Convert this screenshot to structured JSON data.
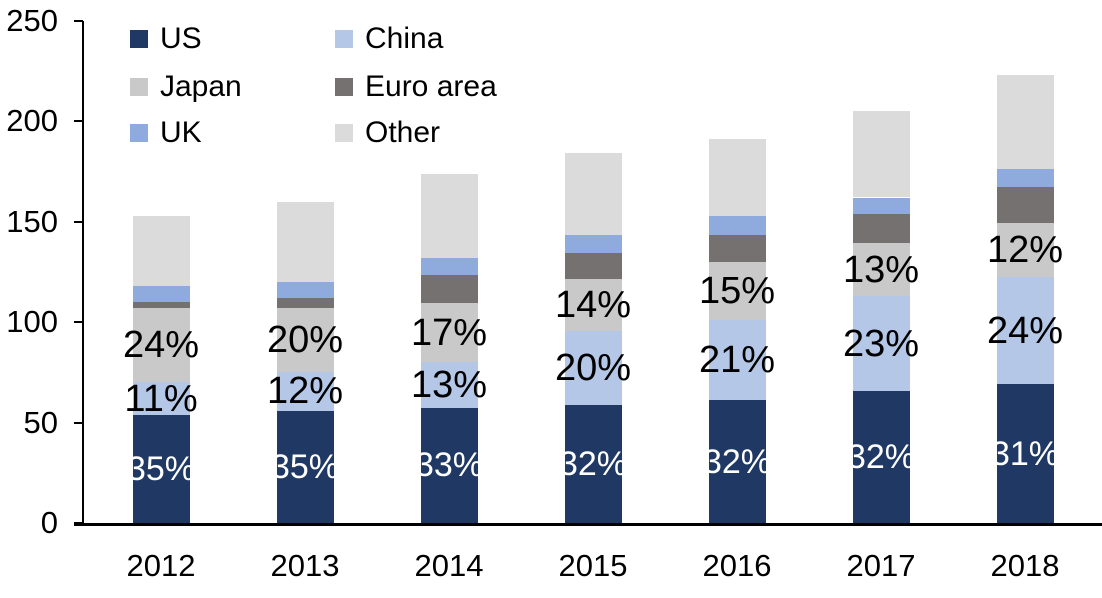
{
  "chart_data": {
    "type": "bar",
    "stacked": true,
    "title": "",
    "xlabel": "",
    "ylabel": "",
    "grid": false,
    "categories": [
      "2012",
      "2013",
      "2014",
      "2015",
      "2016",
      "2017",
      "2018"
    ],
    "totals": [
      153,
      160,
      174,
      184,
      191,
      205,
      223
    ],
    "y_axis": {
      "min": 0,
      "max": 250,
      "tick_step": 50,
      "ticks": [
        0,
        50,
        100,
        150,
        200,
        250
      ],
      "tick_labels": [
        "0",
        "50",
        "100",
        "150",
        "200",
        "250"
      ]
    },
    "series": [
      {
        "name": "US",
        "color": "#1F3864",
        "pct": [
          35,
          35,
          33,
          32,
          32,
          32,
          31
        ],
        "values": [
          53.6,
          56.0,
          57.4,
          58.9,
          61.1,
          65.6,
          69.1
        ],
        "labels": [
          "35%",
          "35%",
          "33%",
          "32%",
          "32%",
          "32%",
          "31%"
        ],
        "label_color": "#FFFFFF"
      },
      {
        "name": "China",
        "color": "#B4C7E7",
        "pct": [
          11,
          12,
          13,
          20,
          21,
          23,
          24
        ],
        "values": [
          16.8,
          19.2,
          22.6,
          36.8,
          40.1,
          47.2,
          53.5
        ],
        "labels": [
          "11%",
          "12%",
          "13%",
          "20%",
          "21%",
          "23%",
          "24%"
        ],
        "label_color": "#000000"
      },
      {
        "name": "Japan",
        "color": "#C9C9C9",
        "pct": [
          24,
          20,
          17,
          14,
          15,
          13,
          12
        ],
        "values": [
          36.7,
          32.0,
          29.6,
          25.8,
          28.7,
          26.7,
          26.8
        ],
        "labels": [
          "24%",
          "20%",
          "17%",
          "14%",
          "15%",
          "13%",
          "12%"
        ],
        "label_color": "#000000"
      },
      {
        "name": "Euro area",
        "color": "#767171",
        "pct": [
          2,
          3,
          8,
          7,
          7,
          7,
          8
        ],
        "values": [
          3.1,
          4.8,
          13.9,
          12.9,
          13.4,
          14.4,
          17.8
        ],
        "labels": null,
        "label_color": null
      },
      {
        "name": "UK",
        "color": "#8FAADC",
        "pct": [
          5,
          5,
          5,
          5,
          5,
          4,
          4
        ],
        "values": [
          7.7,
          8.0,
          8.7,
          9.2,
          9.6,
          8.2,
          8.9
        ],
        "labels": null,
        "label_color": null
      },
      {
        "name": "Other",
        "color": "#DBDBDB",
        "pct": [
          23,
          25,
          24,
          22,
          20,
          21,
          21
        ],
        "values": [
          35.2,
          40.0,
          41.8,
          40.5,
          38.2,
          43.1,
          46.8
        ],
        "labels": null,
        "label_color": null
      }
    ],
    "legend": {
      "position": "top-left",
      "columns": 2,
      "order": [
        "US",
        "China",
        "Japan",
        "Euro area",
        "UK",
        "Other"
      ]
    }
  }
}
